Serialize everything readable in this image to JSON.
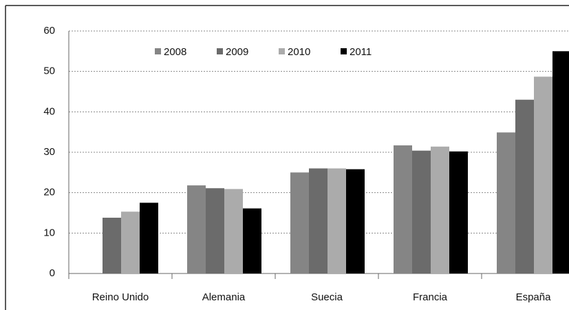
{
  "chart_data": {
    "type": "bar",
    "categories": [
      "Reino Unido",
      "Alemania",
      "Suecia",
      "Francia",
      "España"
    ],
    "series": [
      {
        "name": "2008",
        "color": "#858585",
        "values": [
          null,
          21.8,
          25.0,
          31.7,
          34.9
        ]
      },
      {
        "name": "2009",
        "color": "#6b6b6b",
        "values": [
          13.8,
          21.1,
          26.0,
          30.4,
          43.0
        ]
      },
      {
        "name": "2010",
        "color": "#ababab",
        "values": [
          15.3,
          20.9,
          26.0,
          31.4,
          48.7
        ]
      },
      {
        "name": "2011",
        "color": "#000000",
        "values": [
          17.5,
          16.1,
          25.8,
          30.2,
          55
        ]
      }
    ],
    "ylim": [
      0,
      60
    ],
    "yticks": [
      0,
      10,
      20,
      30,
      40,
      50,
      60
    ],
    "grid": true,
    "legend": "top"
  }
}
